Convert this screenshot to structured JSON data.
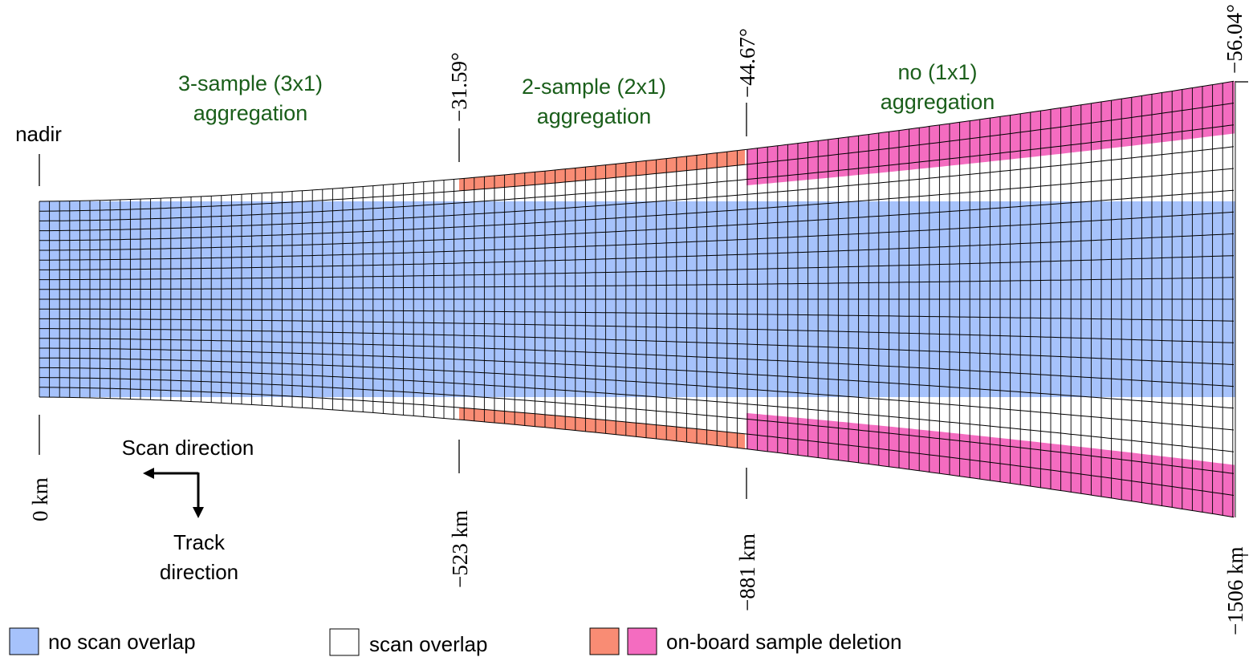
{
  "zones": [
    {
      "line1": "3-sample (3x1)",
      "line2": "aggregation"
    },
    {
      "line1": "2-sample (2x1)",
      "line2": "aggregation"
    },
    {
      "line1": "no (1x1)",
      "line2": "aggregation"
    }
  ],
  "nadir_label": "nadir",
  "angles": [
    "−31.59°",
    "−44.67°",
    "−56.04°"
  ],
  "distances": [
    "0 km",
    "−523 km",
    "−881 km",
    "−1506 km"
  ],
  "directions": {
    "scan": "Scan direction",
    "track_line1": "Track",
    "track_line2": "direction"
  },
  "legend": {
    "no_overlap": "no scan overlap",
    "overlap": "scan overlap",
    "deletion": "on-board sample deletion"
  },
  "colors": {
    "no_overlap": "#a6c2fb",
    "aggregation_2x1_deletion": "#f98c74",
    "no_aggregation_deletion": "#f46cc0",
    "zone_text": "#1a5e1a"
  }
}
